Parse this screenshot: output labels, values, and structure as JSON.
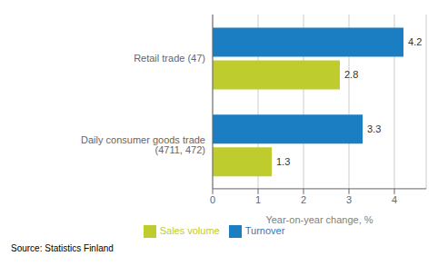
{
  "chart_data": {
    "type": "bar",
    "orientation": "horizontal",
    "categories": [
      "Daily consumer goods trade (4711, 472)",
      "Retail trade (47)"
    ],
    "series": [
      {
        "name": "Turnover",
        "color": "#1B7EC2",
        "values": [
          3.3,
          4.2
        ]
      },
      {
        "name": "Sales volume",
        "color": "#BFCC2E",
        "values": [
          1.3,
          2.8
        ]
      }
    ],
    "xlabel": "Year-on-year change, %",
    "xlim": [
      0,
      4.7
    ],
    "xticks": [
      0,
      1,
      2,
      3,
      4
    ],
    "grid": true,
    "data_labels": true,
    "legend": "bottom",
    "annotations": [
      "Source: Statistics Finland"
    ]
  }
}
